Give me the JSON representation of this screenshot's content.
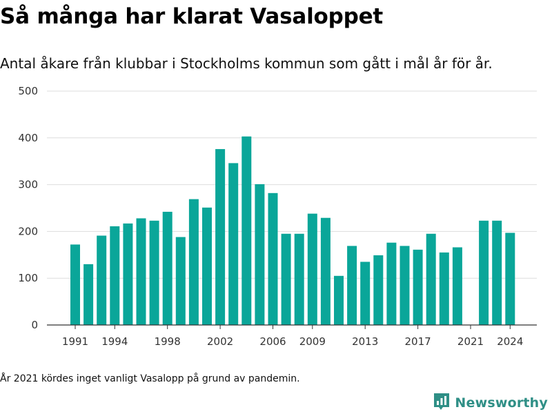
{
  "title": "Så många har klarat Vasaloppet",
  "subtitle": "Antal åkare från klubbar i Stockholms kommun som gått i mål år för år.",
  "footnote": "År 2021 kördes inget vanligt Vasalopp på grund av pandemin.",
  "brand": {
    "name": "Newsworthy",
    "icon": "newsworthy-logo-icon"
  },
  "colors": {
    "bar": "#0aa699",
    "grid": "#dddddd",
    "axis": "#333333",
    "brand": "#2f8f86"
  },
  "chart_data": {
    "type": "bar",
    "title": "Så många har klarat Vasaloppet",
    "xlabel": "",
    "ylabel": "",
    "ylim": [
      0,
      500
    ],
    "yticks": [
      0,
      100,
      200,
      300,
      400,
      500
    ],
    "xticks": [
      1991,
      1994,
      1998,
      2002,
      2006,
      2009,
      2013,
      2017,
      2021,
      2024
    ],
    "grid": true,
    "categories": [
      1991,
      1992,
      1993,
      1994,
      1995,
      1996,
      1997,
      1998,
      1999,
      2000,
      2001,
      2002,
      2003,
      2004,
      2005,
      2006,
      2007,
      2008,
      2009,
      2010,
      2011,
      2012,
      2013,
      2014,
      2015,
      2016,
      2017,
      2018,
      2019,
      2020,
      2021,
      2022,
      2023,
      2024
    ],
    "values": [
      172,
      130,
      191,
      211,
      217,
      228,
      223,
      242,
      188,
      269,
      251,
      376,
      346,
      403,
      301,
      282,
      195,
      195,
      238,
      229,
      105,
      169,
      135,
      149,
      176,
      169,
      161,
      195,
      155,
      166,
      null,
      223,
      223,
      197
    ]
  }
}
